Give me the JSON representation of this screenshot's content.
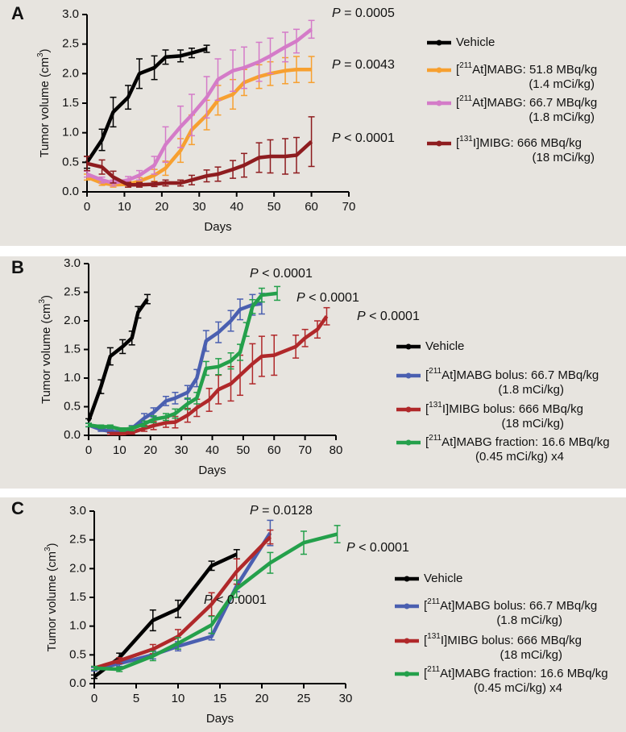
{
  "chart_data": [
    {
      "type": "line",
      "label": "A",
      "xlabel": "Days",
      "ylabel": "Tumor volume (cm3)",
      "xlim": [
        0,
        70
      ],
      "xticks": [
        0,
        10,
        20,
        30,
        40,
        50,
        60,
        70
      ],
      "ylim": [
        0,
        3
      ],
      "yticks": [
        {
          "value": 0,
          "label": "0.0"
        },
        0.5,
        {
          "value": 1,
          "label": "1.0"
        },
        1.5,
        {
          "value": 2,
          "label": "2.0"
        },
        2.5,
        {
          "value": 3,
          "label": "3.0"
        }
      ],
      "annotations": [
        "P = 0.0005",
        "P = 0.0043",
        "P < 0.0001"
      ],
      "series": [
        {
          "name": "Vehicle",
          "color": "#000000",
          "x": [
            0,
            4,
            7,
            11,
            14,
            18,
            21,
            25,
            28,
            32
          ],
          "values": [
            0.5,
            0.88,
            1.35,
            1.6,
            2.0,
            2.1,
            2.28,
            2.3,
            2.35,
            2.42
          ],
          "errors": [
            0.1,
            0.18,
            0.25,
            0.2,
            0.25,
            0.2,
            0.12,
            0.1,
            0.08,
            0.06
          ]
        },
        {
          "name": "[211At]MABG: 51.8 MBq/kg (1.4 mCi/kg)",
          "color": "#f7a030",
          "x": [
            0,
            4,
            7,
            11,
            14,
            18,
            21,
            25,
            28,
            32,
            35,
            39,
            42,
            46,
            49,
            53,
            56,
            60
          ],
          "values": [
            0.25,
            0.15,
            0.12,
            0.13,
            0.18,
            0.28,
            0.4,
            0.7,
            1.05,
            1.3,
            1.55,
            1.65,
            1.85,
            1.95,
            2.0,
            2.05,
            2.07,
            2.07
          ],
          "errors": [
            0.05,
            0.04,
            0.04,
            0.05,
            0.06,
            0.1,
            0.12,
            0.2,
            0.25,
            0.25,
            0.25,
            0.25,
            0.22,
            0.2,
            0.2,
            0.22,
            0.22,
            0.22
          ]
        },
        {
          "name": "[211At]MABG: 66.7 MBq/kg (1.8 mCi/kg)",
          "color": "#d47bc8",
          "x": [
            0,
            4,
            7,
            11,
            14,
            18,
            21,
            25,
            28,
            32,
            35,
            39,
            42,
            46,
            49,
            53,
            56,
            60
          ],
          "values": [
            0.3,
            0.2,
            0.15,
            0.2,
            0.28,
            0.45,
            0.8,
            1.1,
            1.3,
            1.6,
            1.9,
            2.05,
            2.1,
            2.2,
            2.3,
            2.45,
            2.55,
            2.75
          ],
          "errors": [
            0.05,
            0.05,
            0.05,
            0.06,
            0.08,
            0.15,
            0.3,
            0.35,
            0.35,
            0.35,
            0.35,
            0.35,
            0.35,
            0.33,
            0.3,
            0.25,
            0.2,
            0.15
          ]
        },
        {
          "name": "[131I]MIBG: 666 MBq/kg (18 mCi/kg)",
          "color": "#8e1c1f",
          "x": [
            0,
            4,
            7,
            11,
            14,
            18,
            21,
            25,
            28,
            32,
            35,
            39,
            42,
            46,
            49,
            53,
            56,
            60
          ],
          "values": [
            0.48,
            0.42,
            0.25,
            0.12,
            0.12,
            0.13,
            0.15,
            0.15,
            0.2,
            0.27,
            0.3,
            0.38,
            0.45,
            0.58,
            0.6,
            0.6,
            0.62,
            0.85
          ],
          "errors": [
            0.12,
            0.12,
            0.1,
            0.04,
            0.04,
            0.04,
            0.05,
            0.05,
            0.08,
            0.1,
            0.12,
            0.15,
            0.2,
            0.25,
            0.28,
            0.3,
            0.3,
            0.42
          ]
        }
      ]
    },
    {
      "type": "line",
      "label": "B",
      "xlabel": "Days",
      "ylabel": "Tumor volume (cm3)",
      "xlim": [
        0,
        80
      ],
      "xticks": [
        0,
        10,
        20,
        30,
        40,
        50,
        60,
        70,
        80
      ],
      "ylim": [
        0,
        3
      ],
      "yticks": [
        {
          "value": 0,
          "label": "0.0"
        },
        0.5,
        {
          "value": 1,
          "label": "1.0"
        },
        1.5,
        {
          "value": 2,
          "label": "2.0"
        },
        2.5,
        {
          "value": 3,
          "label": "3.0"
        }
      ],
      "annotations": [
        "P < 0.0001",
        "P < 0.0001",
        "P < 0.0001"
      ],
      "series": [
        {
          "name": "Vehicle",
          "color": "#000000",
          "x": [
            0,
            4,
            7,
            11,
            14,
            16,
            19
          ],
          "values": [
            0.25,
            0.85,
            1.38,
            1.55,
            1.7,
            2.15,
            2.38
          ],
          "errors": [
            0.04,
            0.12,
            0.15,
            0.12,
            0.12,
            0.1,
            0.08
          ]
        },
        {
          "name": "[211At]MABG bolus: 66.7 MBq/kg (1.8 mCi/kg)",
          "color": "#4a5fb0",
          "x": [
            0,
            4,
            7,
            11,
            14,
            18,
            21,
            25,
            28,
            32,
            35,
            38,
            42,
            46,
            49,
            53,
            56
          ],
          "values": [
            0.18,
            0.1,
            0.07,
            0.05,
            0.12,
            0.3,
            0.4,
            0.6,
            0.65,
            0.75,
            1.0,
            1.65,
            1.8,
            2.0,
            2.2,
            2.28,
            2.3
          ],
          "errors": [
            0.03,
            0.03,
            0.03,
            0.03,
            0.05,
            0.08,
            0.08,
            0.08,
            0.1,
            0.12,
            0.15,
            0.18,
            0.18,
            0.18,
            0.18,
            0.18,
            0.18
          ]
        },
        {
          "name": "[131I]MIBG bolus: 666 MBq/kg (18 mCi/kg)",
          "color": "#b0282a",
          "x": [
            7,
            11,
            14,
            18,
            21,
            25,
            28,
            32,
            35,
            39,
            42,
            46,
            49,
            53,
            56,
            60,
            67,
            70,
            74,
            77
          ],
          "values": [
            0.03,
            0.03,
            0.05,
            0.12,
            0.17,
            0.22,
            0.23,
            0.35,
            0.48,
            0.62,
            0.8,
            0.9,
            1.05,
            1.25,
            1.38,
            1.4,
            1.55,
            1.7,
            1.85,
            2.08
          ],
          "errors": [
            0.02,
            0.02,
            0.03,
            0.05,
            0.07,
            0.08,
            0.1,
            0.12,
            0.15,
            0.2,
            0.25,
            0.3,
            0.35,
            0.35,
            0.35,
            0.35,
            0.2,
            0.15,
            0.15,
            0.15
          ]
        },
        {
          "name": "[211At]MABG fraction: 16.6 MBq/kg (0.45 mCi/kg) x4",
          "color": "#24a04b",
          "x": [
            0,
            4,
            7,
            11,
            14,
            18,
            21,
            25,
            28,
            32,
            35,
            38,
            42,
            46,
            49,
            51,
            53,
            56,
            61
          ],
          "values": [
            0.18,
            0.15,
            0.15,
            0.1,
            0.12,
            0.2,
            0.28,
            0.32,
            0.38,
            0.55,
            0.65,
            1.17,
            1.2,
            1.3,
            1.45,
            1.85,
            2.25,
            2.45,
            2.48
          ],
          "errors": [
            0.03,
            0.03,
            0.03,
            0.03,
            0.04,
            0.05,
            0.06,
            0.06,
            0.08,
            0.1,
            0.1,
            0.12,
            0.14,
            0.14,
            0.14,
            0.12,
            0.12,
            0.12,
            0.12
          ]
        }
      ]
    },
    {
      "type": "line",
      "label": "C",
      "xlabel": "Days",
      "ylabel": "Tumor volume (cm3)",
      "xlim": [
        0,
        30
      ],
      "xticks": [
        0,
        5,
        10,
        15,
        20,
        25,
        30
      ],
      "ylim": [
        0,
        3
      ],
      "yticks": [
        {
          "value": 0,
          "label": "0.0"
        },
        0.5,
        {
          "value": 1,
          "label": "1.0"
        },
        1.5,
        {
          "value": 2,
          "label": "2.0"
        },
        2.5,
        {
          "value": 3,
          "label": "3.0"
        }
      ],
      "annotations": [
        "P = 0.0128",
        "P < 0.0001",
        "P < 0.0001"
      ],
      "series": [
        {
          "name": "Vehicle",
          "color": "#000000",
          "x": [
            0,
            3,
            7,
            10,
            14,
            17
          ],
          "values": [
            0.12,
            0.45,
            1.1,
            1.3,
            2.05,
            2.25
          ],
          "errors": [
            0.03,
            0.08,
            0.18,
            0.15,
            0.08,
            0.08
          ]
        },
        {
          "name": "[211At]MABG bolus: 66.7 MBq/kg (1.8 mCi/kg)",
          "color": "#4a5fb0",
          "x": [
            0,
            3,
            7,
            10,
            14,
            17,
            21
          ],
          "values": [
            0.25,
            0.35,
            0.5,
            0.65,
            0.82,
            1.7,
            2.62
          ],
          "errors": [
            0.03,
            0.05,
            0.07,
            0.08,
            0.06,
            0.1,
            0.22
          ]
        },
        {
          "name": "[131I]MIBG bolus: 666 MBq/kg (18 mCi/kg)",
          "color": "#b0282a",
          "x": [
            0,
            3,
            7,
            10,
            14,
            17,
            21
          ],
          "values": [
            0.27,
            0.4,
            0.6,
            0.82,
            1.38,
            1.95,
            2.55
          ],
          "errors": [
            0.03,
            0.05,
            0.08,
            0.12,
            0.2,
            0.22,
            0.12
          ]
        },
        {
          "name": "[211At]MABG fraction: 16.6 MBq/kg (0.45 mCi/kg) x4",
          "color": "#24a04b",
          "x": [
            0,
            3,
            7,
            10,
            14,
            17,
            21,
            25,
            29
          ],
          "values": [
            0.27,
            0.25,
            0.48,
            0.7,
            1.02,
            1.65,
            2.1,
            2.45,
            2.6
          ],
          "errors": [
            0.03,
            0.04,
            0.08,
            0.1,
            0.15,
            0.15,
            0.18,
            0.2,
            0.15
          ]
        }
      ]
    }
  ]
}
